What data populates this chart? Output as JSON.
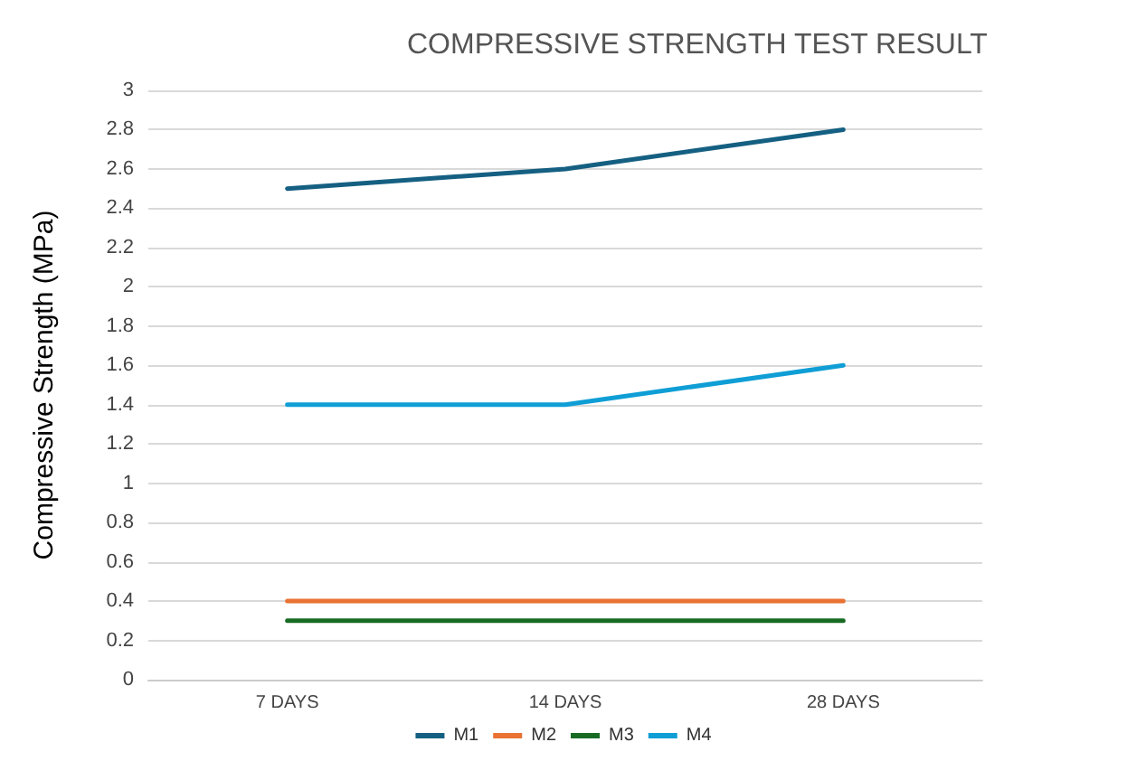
{
  "chart_data": {
    "type": "line",
    "title": "COMPRESSIVE STRENGTH TEST RESULT",
    "ylabel": "Compressive Strength (MPa)",
    "categories": [
      "7 DAYS",
      "14 DAYS",
      "28 DAYS"
    ],
    "series": [
      {
        "name": "M1",
        "color": "#156082",
        "values": [
          2.5,
          2.6,
          2.8
        ]
      },
      {
        "name": "M2",
        "color": "#e97132",
        "values": [
          0.4,
          0.4,
          0.4
        ]
      },
      {
        "name": "M3",
        "color": "#196b24",
        "values": [
          0.3,
          0.3,
          0.3
        ]
      },
      {
        "name": "M4",
        "color": "#0f9ed5",
        "values": [
          1.4,
          1.4,
          1.6
        ]
      }
    ],
    "ylim": [
      0,
      3
    ],
    "yticks": [
      0,
      0.2,
      0.4,
      0.6,
      0.8,
      1,
      1.2,
      1.4,
      1.6,
      1.8,
      2,
      2.2,
      2.4,
      2.6,
      2.8,
      3
    ],
    "grid": "y",
    "legend": "bottom",
    "marker": "none",
    "line_style": "solid"
  }
}
